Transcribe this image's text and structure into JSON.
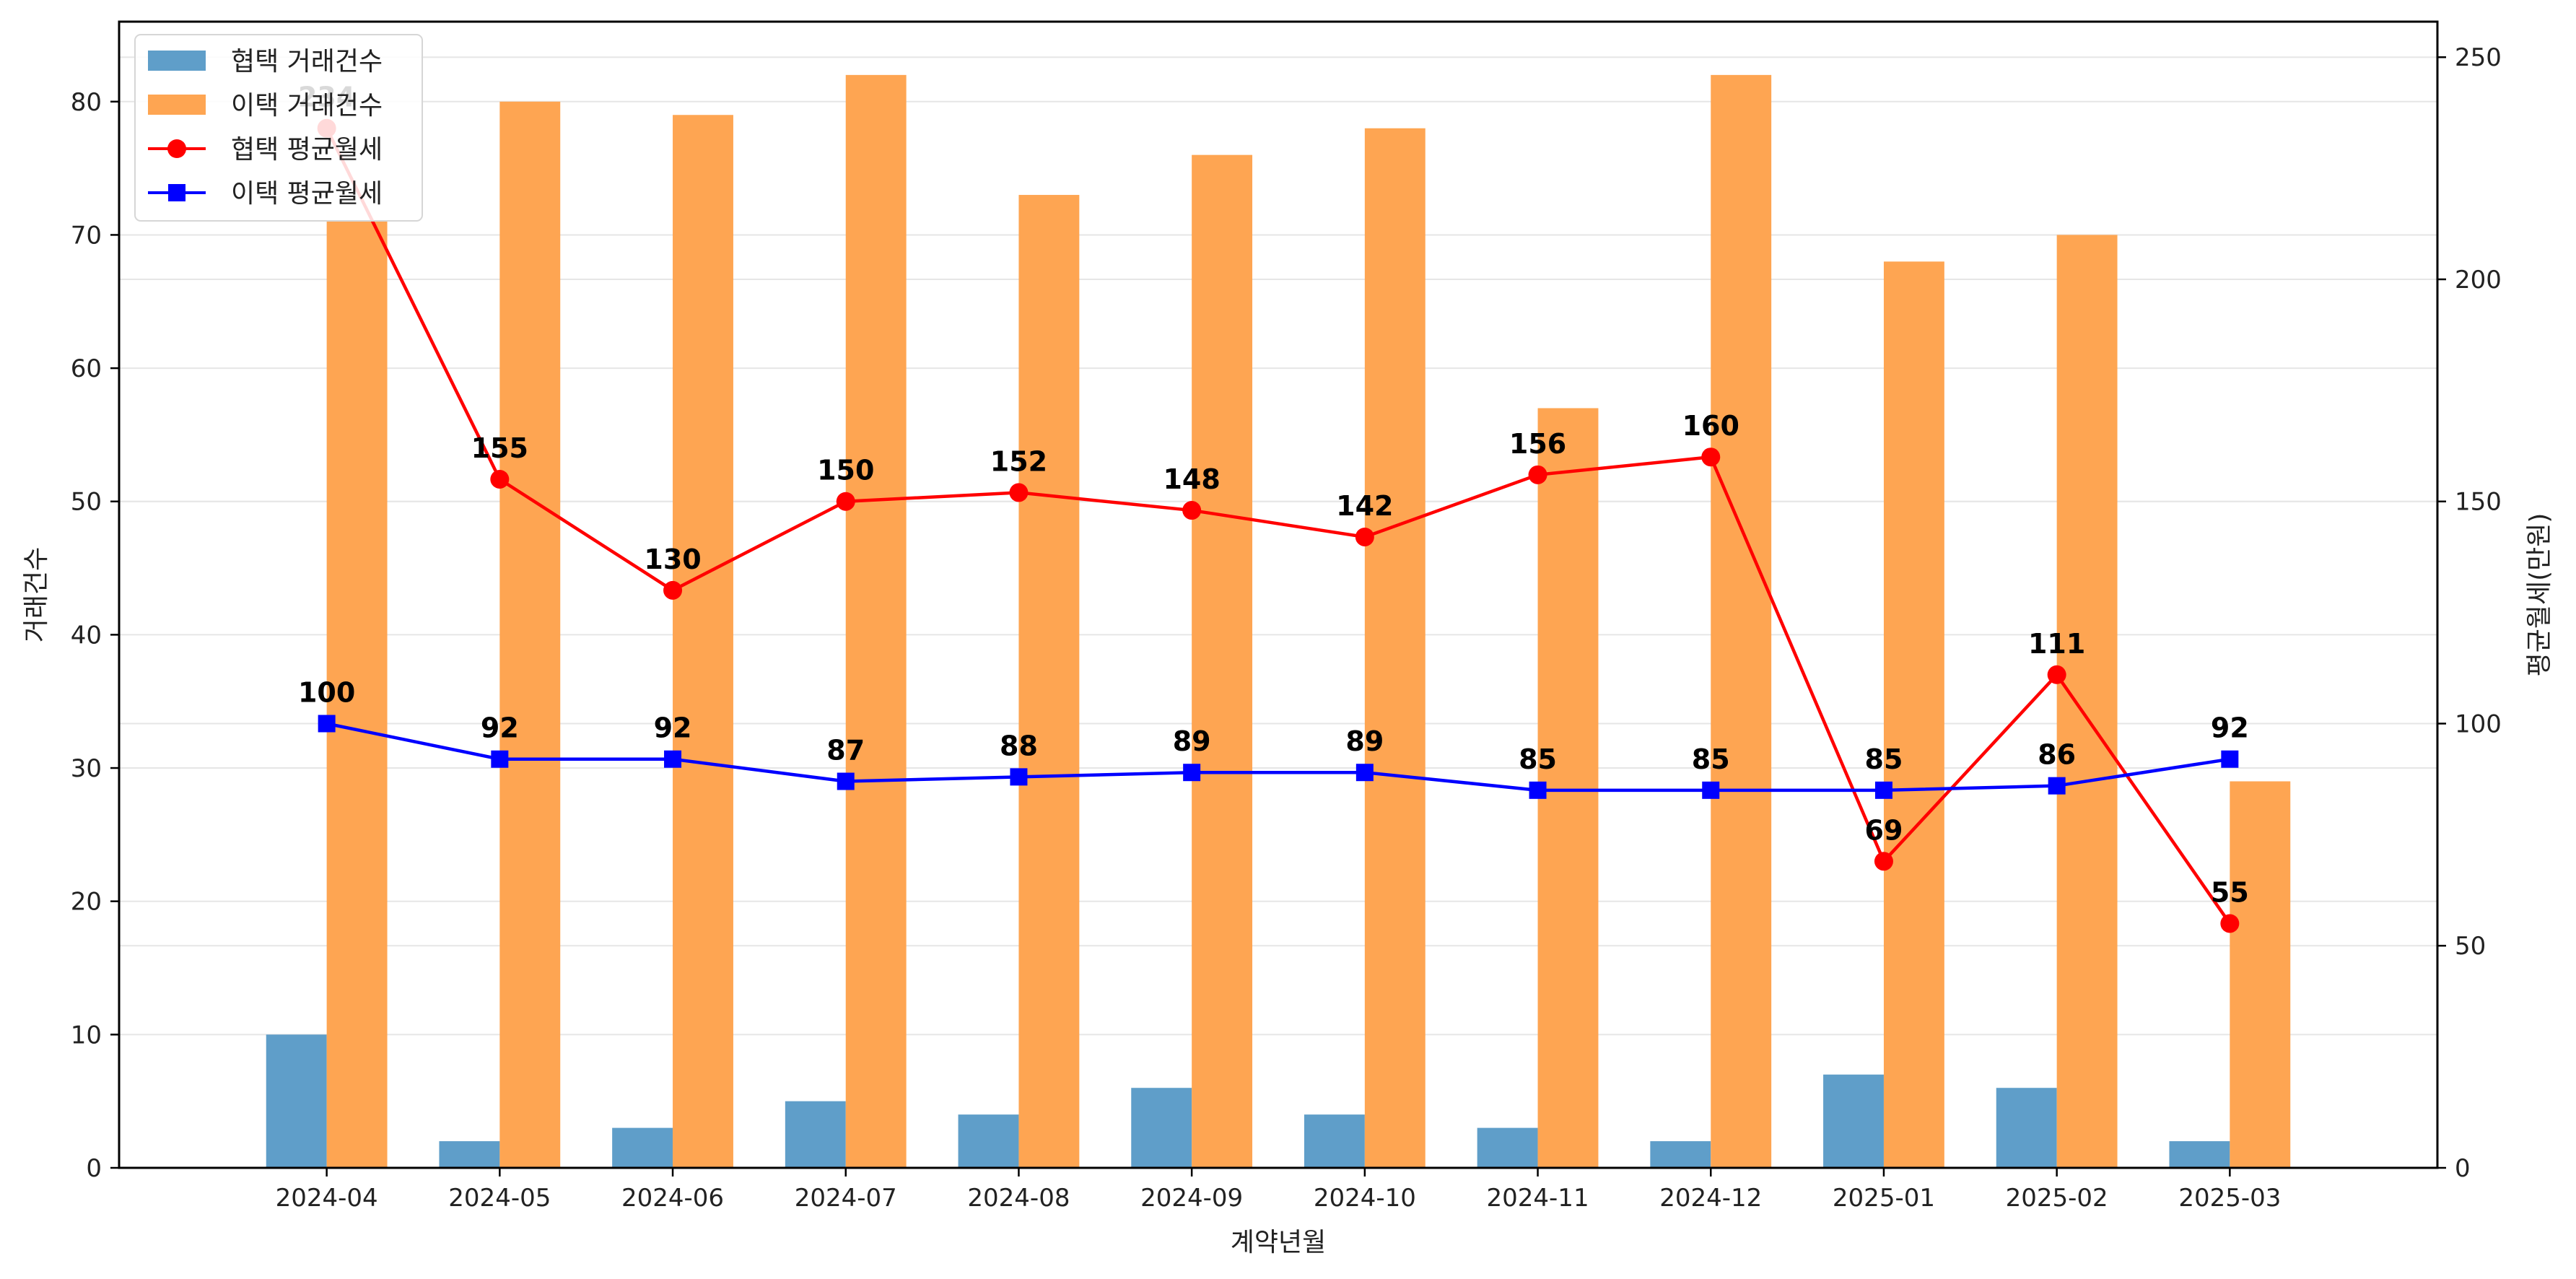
{
  "chart_data": {
    "type": "bar+line",
    "categories": [
      "2024-04",
      "2024-05",
      "2024-06",
      "2024-07",
      "2024-08",
      "2024-09",
      "2024-10",
      "2024-11",
      "2024-12",
      "2025-01",
      "2025-02",
      "2025-03"
    ],
    "xlabel": "계약년월",
    "ylabel_left": "거래건수",
    "ylabel_right": "평균월세(만원)",
    "ylim_left": [
      0,
      86
    ],
    "ylim_right": [
      0,
      258
    ],
    "yticks_left": [
      0,
      10,
      20,
      30,
      40,
      50,
      60,
      70,
      80
    ],
    "yticks_right": [
      0,
      50,
      100,
      150,
      200,
      250
    ],
    "grid": "horizontal",
    "legend_position": "top-left",
    "bar_series": [
      {
        "name": "협택 거래건수",
        "color": "#5f9ec9",
        "values": [
          10,
          2,
          3,
          5,
          4,
          6,
          4,
          3,
          2,
          7,
          6,
          2
        ]
      },
      {
        "name": "이택 거래건수",
        "color": "#fea552",
        "values": [
          71,
          80,
          79,
          82,
          73,
          76,
          78,
          57,
          82,
          68,
          70,
          29
        ]
      }
    ],
    "line_series": [
      {
        "name": "협택 평균월세",
        "color": "#ff0000",
        "marker": "circle",
        "values": [
          234,
          155,
          130,
          150,
          152,
          148,
          142,
          156,
          160,
          69,
          111,
          55
        ]
      },
      {
        "name": "이택 평균월세",
        "color": "#0000ff",
        "marker": "square",
        "values": [
          100,
          92,
          92,
          87,
          88,
          89,
          89,
          85,
          85,
          85,
          86,
          92
        ]
      }
    ]
  }
}
